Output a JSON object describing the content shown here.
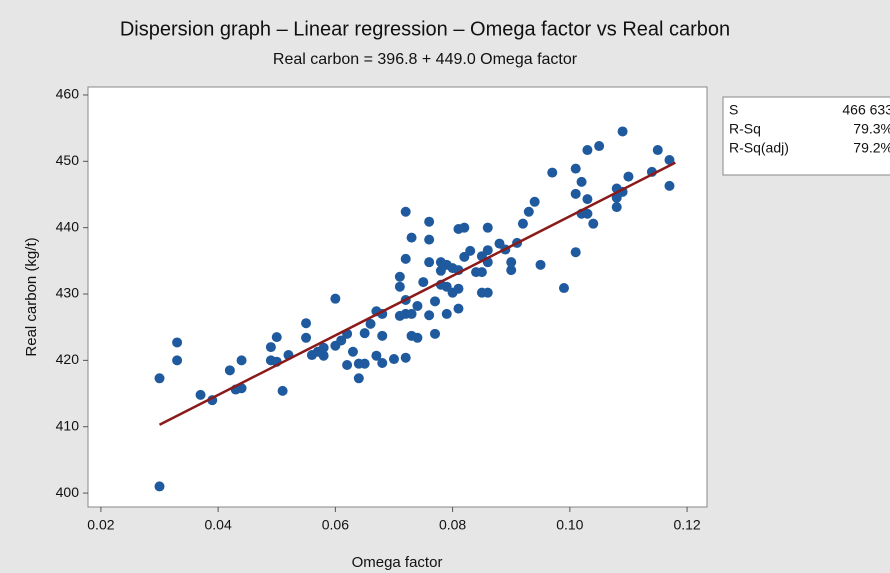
{
  "chart_data": {
    "type": "scatter",
    "title": "Dispersion graph – Linear regression – Omega factor vs Real carbon",
    "subtitle": "Real carbon = 396.8 + 449.0 Omega factor",
    "x_label": "Omega factor",
    "y_label": "Real carbon (kg/t)",
    "color": "#1f5a9e",
    "x": [
      0.03,
      0.03,
      0.033,
      0.033,
      0.037,
      0.039,
      0.042,
      0.043,
      0.044,
      0.044,
      0.049,
      0.049,
      0.05,
      0.05,
      0.051,
      0.052,
      0.055,
      0.055,
      0.056,
      0.057,
      0.058,
      0.058,
      0.06,
      0.06,
      0.061,
      0.062,
      0.062,
      0.063,
      0.064,
      0.064,
      0.065,
      0.065,
      0.066,
      0.067,
      0.067,
      0.068,
      0.068,
      0.068,
      0.07,
      0.071,
      0.071,
      0.071,
      0.072,
      0.072,
      0.072,
      0.072,
      0.072,
      0.073,
      0.073,
      0.073,
      0.074,
      0.074,
      0.075,
      0.076,
      0.076,
      0.076,
      0.076,
      0.077,
      0.077,
      0.078,
      0.078,
      0.078,
      0.079,
      0.079,
      0.079,
      0.08,
      0.08,
      0.081,
      0.081,
      0.081,
      0.081,
      0.082,
      0.082,
      0.083,
      0.084,
      0.085,
      0.085,
      0.085,
      0.086,
      0.086,
      0.086,
      0.086,
      0.088,
      0.089,
      0.09,
      0.09,
      0.091,
      0.092,
      0.093,
      0.094,
      0.095,
      0.097,
      0.099,
      0.101,
      0.101,
      0.101,
      0.102,
      0.102,
      0.103,
      0.103,
      0.103,
      0.104,
      0.105,
      0.108,
      0.108,
      0.108,
      0.109,
      0.109,
      0.11,
      0.114,
      0.115,
      0.117,
      0.117
    ],
    "values": [
      417.3,
      401,
      422.7,
      420,
      414.8,
      414,
      418.5,
      415.6,
      415.8,
      420,
      422,
      420,
      419.8,
      423.5,
      415.4,
      420.8,
      425.6,
      423.4,
      420.8,
      421.3,
      421.9,
      420.7,
      429.3,
      422.2,
      423,
      424,
      419.3,
      421.3,
      417.3,
      419.5,
      424.1,
      419.5,
      425.5,
      427.4,
      420.7,
      427,
      423.7,
      419.6,
      420.2,
      432.6,
      431.1,
      426.7,
      427,
      420.4,
      435.3,
      442.4,
      429.1,
      423.7,
      427,
      438.5,
      428.2,
      423.4,
      431.8,
      434.8,
      438.2,
      440.9,
      426.8,
      424,
      428.9,
      431.4,
      433.5,
      434.8,
      431.1,
      427,
      434.4,
      430.2,
      433.9,
      439.8,
      430.8,
      427.8,
      433.6,
      440,
      435.6,
      436.5,
      433.3,
      435.7,
      430.2,
      433.3,
      436.6,
      440,
      430.2,
      434.8,
      437.6,
      436.7,
      433.6,
      434.8,
      437.7,
      440.6,
      442.4,
      443.9,
      434.4,
      448.3,
      430.9,
      436.3,
      448.9,
      445.1,
      446.9,
      442.1,
      451.7,
      442.1,
      444.3,
      440.6,
      452.3,
      444.5,
      445.9,
      443.1,
      445.4,
      454.5,
      447.7,
      448.4,
      451.7,
      450.2,
      446.3
    ],
    "fit": {
      "color": "#8b1a1a",
      "x": [
        0.03,
        0.118
      ],
      "values": [
        410.3,
        449.8
      ]
    },
    "xlim": [
      0.0178,
      0.1234
    ],
    "ylim": [
      397.9,
      461.2
    ],
    "xticks": [
      0.02,
      0.04,
      0.06,
      0.08,
      {
        "value": 0.1,
        "label": "0.10"
      },
      0.12
    ],
    "yticks": [
      400,
      410,
      420,
      430,
      440,
      450,
      460
    ],
    "stats": [
      [
        "S",
        "466 633"
      ],
      [
        "R-Sq",
        "79.3%"
      ],
      [
        "R-Sq(adj)",
        "79.2%"
      ]
    ]
  }
}
